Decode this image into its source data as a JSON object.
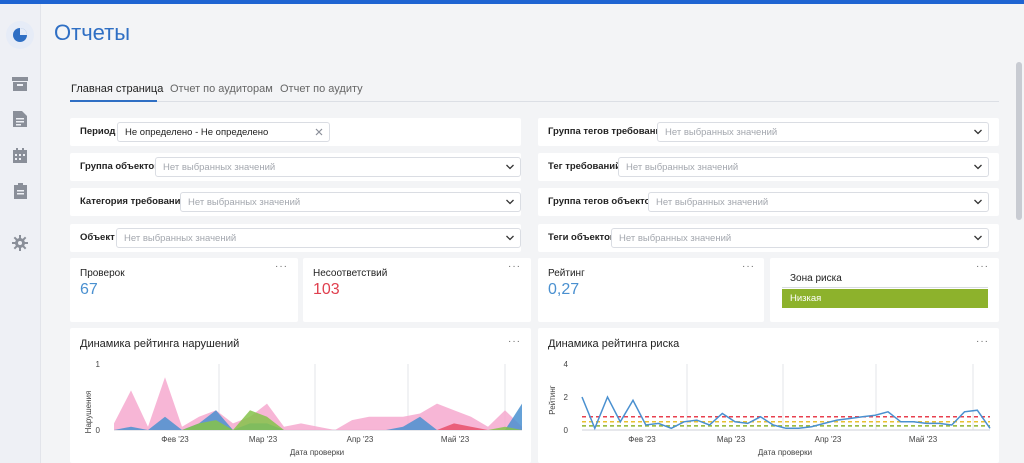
{
  "page": {
    "title": "Отчеты"
  },
  "sidebar": {
    "items": [
      {
        "icon": "pie-chart-icon",
        "active": true
      },
      {
        "icon": "archive-icon"
      },
      {
        "icon": "document-icon"
      },
      {
        "icon": "calendar-icon"
      },
      {
        "icon": "clipboard-icon"
      },
      {
        "icon": "gear-icon"
      }
    ]
  },
  "tabs": [
    {
      "label": "Главная страница",
      "active": true
    },
    {
      "label": "Отчет по аудиторам"
    },
    {
      "label": "Отчет по аудиту"
    }
  ],
  "filters": {
    "period": {
      "label": "Период",
      "value": "Не определено - Не определено"
    },
    "object_group": {
      "label": "Группа объектов",
      "placeholder": "Нет выбранных значений"
    },
    "requirement_category": {
      "label": "Категория требований",
      "placeholder": "Нет выбранных значений"
    },
    "object": {
      "label": "Объект",
      "placeholder": "Нет выбранных значений"
    },
    "requirement_tag_group": {
      "label": "Группа тегов требований",
      "placeholder": "Нет выбранных значений"
    },
    "requirement_tag": {
      "label": "Тег требований",
      "placeholder": "Нет выбранных значений"
    },
    "object_tag_group": {
      "label": "Группа тегов объектов",
      "placeholder": "Нет выбранных значений"
    },
    "object_tags": {
      "label": "Теги объектов",
      "placeholder": "Нет выбранных значений"
    }
  },
  "stats": {
    "checks": {
      "label": "Проверок",
      "value": "67",
      "color": "#4a90d0"
    },
    "nonconformities": {
      "label": "Несоответствий",
      "value": "103",
      "color": "#e0404f"
    },
    "rating": {
      "label": "Рейтинг",
      "value": "0,27",
      "color": "#4a90d0"
    },
    "risk_zone": {
      "label": "Зона риска",
      "value": "Низкая",
      "color": "#8db22c"
    },
    "menu_label": "···"
  },
  "chart_data": [
    {
      "type": "area",
      "title": "Динамика рейтинга нарушений",
      "ylabel": "Нарушения",
      "xlabel": "Дата проверки",
      "yticks": [
        "0",
        "1"
      ],
      "xticks": [
        "Фев '23",
        "Мар '23",
        "Апр '23",
        "Май '23"
      ],
      "ylim": [
        0,
        1
      ],
      "series": [
        {
          "color": "#f6a9cf",
          "values": [
            0.1,
            0.6,
            0.05,
            0.8,
            0.05,
            0.2,
            0.3,
            0.1,
            0.2,
            0.4,
            0.05,
            0.1,
            0.05,
            0.0,
            0.15,
            0.2,
            0.2,
            0.2,
            0.25,
            0.4,
            0.3,
            0.2,
            0.05,
            0.3,
            0.05
          ]
        },
        {
          "color": "#4a90d0",
          "values": [
            0.0,
            0.05,
            0.0,
            0.2,
            0.0,
            0.1,
            0.3,
            0.0,
            0.1,
            0.1,
            0.0,
            0.0,
            0.0,
            0.0,
            0.0,
            0.0,
            0.0,
            0.05,
            0.2,
            0.0,
            0.0,
            0.0,
            0.0,
            0.0,
            0.4
          ]
        },
        {
          "color": "#85c34a",
          "values": [
            0.0,
            0.0,
            0.0,
            0.0,
            0.0,
            0.1,
            0.15,
            0.0,
            0.3,
            0.2,
            0.0,
            0.0,
            0.0,
            0.0,
            0.0,
            0.0,
            0.0,
            0.0,
            0.0,
            0.0,
            0.0,
            0.0,
            0.0,
            0.05,
            0.0
          ]
        },
        {
          "color": "#e8506a",
          "values": [
            0.0,
            0.0,
            0.0,
            0.0,
            0.0,
            0.0,
            0.0,
            0.0,
            0.0,
            0.0,
            0.0,
            0.0,
            0.0,
            0.0,
            0.0,
            0.0,
            0.0,
            0.0,
            0.0,
            0.0,
            0.1,
            0.05,
            0.0,
            0.0,
            0.0
          ]
        }
      ]
    },
    {
      "type": "line",
      "title": "Динамика рейтинга риска",
      "ylabel": "Рейтинг",
      "xlabel": "Дата проверки",
      "yticks": [
        "0",
        "2",
        "4"
      ],
      "xticks": [
        "Фев '23",
        "Мар '23",
        "Апр '23",
        "Май '23"
      ],
      "ylim": [
        0,
        4
      ],
      "series": [
        {
          "color": "#4a90d0",
          "values": [
            2.0,
            0.1,
            2.0,
            0.5,
            1.8,
            0.3,
            0.4,
            0.1,
            0.5,
            0.6,
            0.3,
            1.0,
            0.5,
            0.4,
            0.8,
            0.3,
            0.1,
            0.1,
            0.2,
            0.4,
            0.6,
            0.7,
            0.8,
            0.9,
            1.1,
            0.5,
            0.5,
            0.4,
            0.4,
            0.3,
            1.1,
            1.2,
            0.1
          ]
        }
      ],
      "thresholds": [
        {
          "value": 0.8,
          "color": "#e8404f"
        },
        {
          "value": 0.5,
          "color": "#e8c030"
        },
        {
          "value": 0.25,
          "color": "#8db22c"
        }
      ]
    }
  ]
}
